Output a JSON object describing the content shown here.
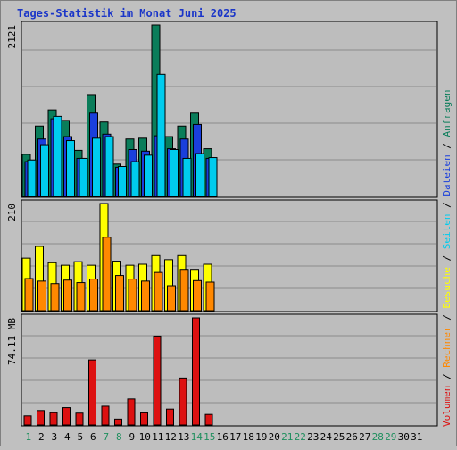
{
  "title": "Tages-Statistik im Monat Juni 2025",
  "colors": {
    "background": "#c0c0c0",
    "plot": "#bdbdbd",
    "grid": "#8a8a8a",
    "title": "#1b36c8",
    "anfragen": "#0a7d5a",
    "dateien": "#1a3fdc",
    "seiten": "#00ccee",
    "besuche": "#ffff00",
    "rechner": "#ff8800",
    "volumen": "#dd1111",
    "weekend": "#1f8f5e",
    "weekday": "#000000"
  },
  "legend_right": [
    {
      "text": "Volumen",
      "color_key": "volumen"
    },
    {
      "text": " / ",
      "color_key": "weekday"
    },
    {
      "text": "Rechner",
      "color_key": "rechner"
    },
    {
      "text": " / ",
      "color_key": "weekday"
    },
    {
      "text": "Besuche",
      "color_key": "besuche"
    },
    {
      "text": " / ",
      "color_key": "weekday"
    },
    {
      "text": "Seiten",
      "color_key": "seiten"
    },
    {
      "text": " / ",
      "color_key": "weekday"
    },
    {
      "text": "Dateien",
      "color_key": "dateien"
    },
    {
      "text": " / ",
      "color_key": "weekday"
    },
    {
      "text": "Anfragen",
      "color_key": "anfragen"
    }
  ],
  "chart_data": [
    {
      "type": "bar",
      "panel": "top",
      "ylabel": "2121",
      "ylim": [
        0,
        2121
      ],
      "grid": true,
      "series": [
        {
          "name": "Anfragen",
          "color_key": "anfragen",
          "values": [
            520,
            870,
            1070,
            940,
            570,
            1260,
            920,
            400,
            710,
            720,
            2121,
            740,
            870,
            1030,
            590,
            0,
            0,
            0,
            0,
            0,
            0,
            0,
            0,
            0,
            0,
            0,
            0,
            0,
            0,
            0,
            0
          ]
        },
        {
          "name": "Dateien",
          "color_key": "dateien",
          "values": [
            430,
            710,
            960,
            740,
            470,
            1030,
            770,
            360,
            580,
            560,
            750,
            590,
            710,
            890,
            470,
            0,
            0,
            0,
            0,
            0,
            0,
            0,
            0,
            0,
            0,
            0,
            0,
            0,
            0,
            0,
            0
          ]
        },
        {
          "name": "Seiten",
          "color_key": "seiten",
          "values": [
            450,
            640,
            990,
            690,
            470,
            720,
            740,
            370,
            430,
            510,
            1510,
            580,
            470,
            530,
            480,
            0,
            0,
            0,
            0,
            0,
            0,
            0,
            0,
            0,
            0,
            0,
            0,
            0,
            0,
            0,
            0
          ]
        }
      ]
    },
    {
      "type": "bar",
      "panel": "middle",
      "ylabel": "210",
      "ylim": [
        0,
        210
      ],
      "grid": true,
      "series": [
        {
          "name": "Besuche",
          "color_key": "besuche",
          "values": [
            103,
            126,
            94,
            89,
            96,
            89,
            210,
            97,
            89,
            91,
            108,
            100,
            108,
            81,
            91,
            0,
            0,
            0,
            0,
            0,
            0,
            0,
            0,
            0,
            0,
            0,
            0,
            0,
            0,
            0,
            0
          ]
        },
        {
          "name": "Rechner",
          "color_key": "rechner",
          "values": [
            63,
            58,
            53,
            60,
            55,
            62,
            144,
            69,
            62,
            58,
            75,
            49,
            81,
            59,
            56,
            0,
            0,
            0,
            0,
            0,
            0,
            0,
            0,
            0,
            0,
            0,
            0,
            0,
            0,
            0,
            0
          ]
        }
      ]
    },
    {
      "type": "bar",
      "panel": "bottom",
      "ylabel": "74.11 MB",
      "ylim": [
        0,
        74.11
      ],
      "grid": true,
      "series": [
        {
          "name": "Volumen",
          "color_key": "volumen",
          "values": [
            6.3,
            10.0,
            8.5,
            12.0,
            8.2,
            45.0,
            13.0,
            4.1,
            18.0,
            8.4,
            61.5,
            11.0,
            32.5,
            74.11,
            7.3,
            0,
            0,
            0,
            0,
            0,
            0,
            0,
            0,
            0,
            0,
            0,
            0,
            0,
            0,
            0,
            0
          ]
        }
      ]
    }
  ],
  "x_axis": {
    "labels": [
      "1",
      "2",
      "3",
      "4",
      "5",
      "6",
      "7",
      "8",
      "9",
      "10",
      "11",
      "12",
      "13",
      "14",
      "15",
      "16",
      "17",
      "18",
      "19",
      "20",
      "21",
      "22",
      "23",
      "24",
      "25",
      "26",
      "27",
      "28",
      "29",
      "30",
      "31"
    ],
    "weekend_days": [
      1,
      7,
      8,
      14,
      15,
      21,
      22,
      28,
      29
    ]
  }
}
